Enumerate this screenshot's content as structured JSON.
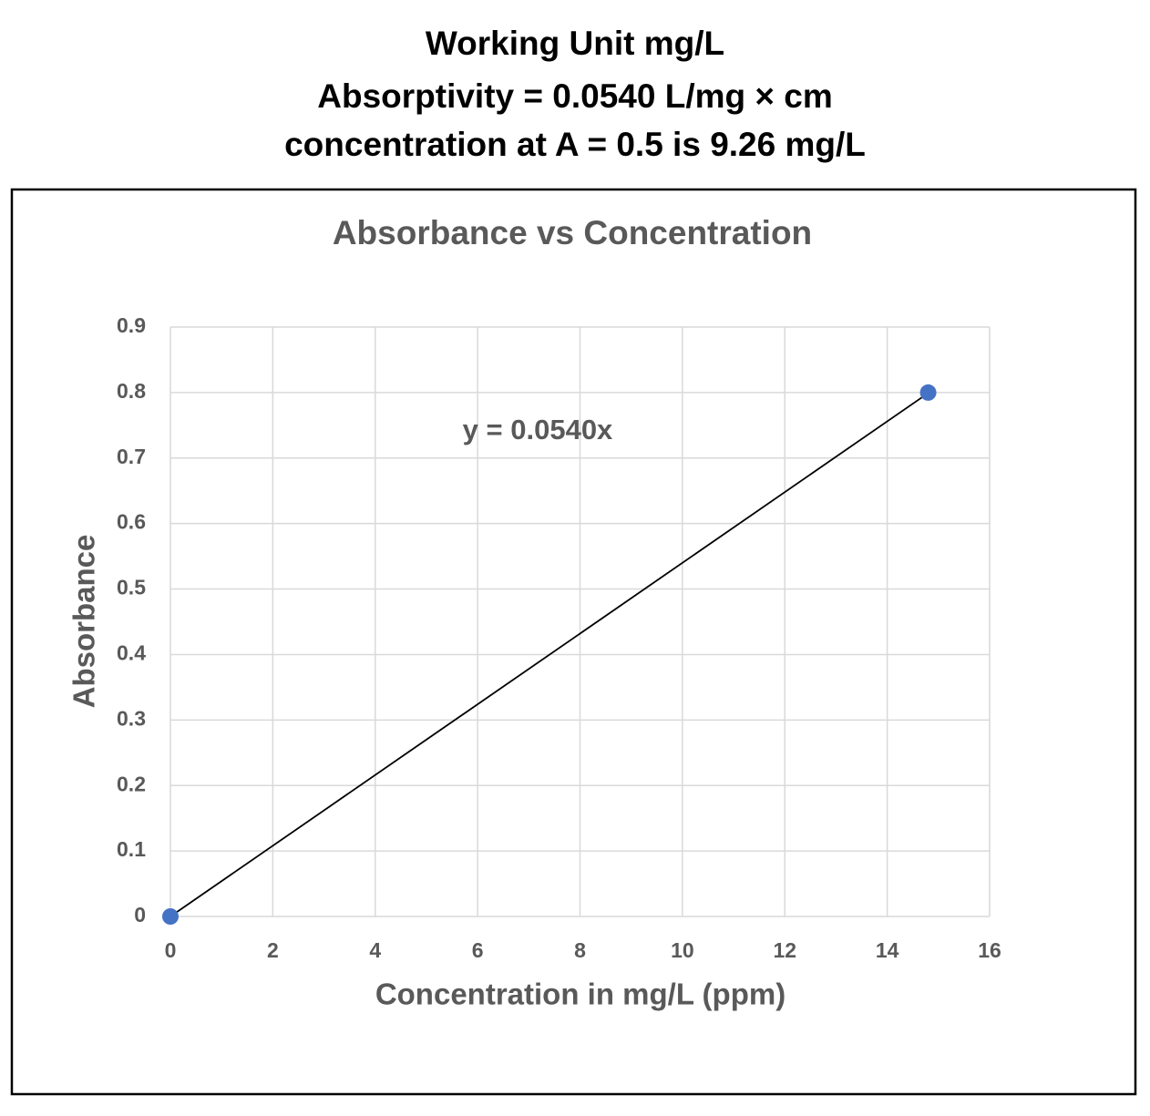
{
  "header": {
    "lines": [
      "Working Unit mg/L",
      "Absorptivity = 0.0540 L/mg × cm",
      "concentration at A = 0.5 is 9.26 mg/L"
    ]
  },
  "chart_data": {
    "type": "scatter",
    "title": "Absorbance vs Concentration",
    "x_label": "Concentration in mg/L (ppm)",
    "y_label": "Absorbance",
    "series": [
      {
        "name": "Absorbance",
        "color": "#4472c4",
        "x": [
          0,
          14.8
        ],
        "values": [
          0,
          0.8
        ]
      }
    ],
    "trendline": {
      "slope": 0.054,
      "label": "y = 0.0540x",
      "color": "#000000"
    },
    "xlim": [
      0,
      16
    ],
    "xticks": [
      0,
      2,
      4,
      6,
      8,
      10,
      12,
      14,
      16
    ],
    "ylim": [
      0,
      0.9
    ],
    "yticks": [
      0,
      0.1,
      0.2,
      0.3,
      0.4,
      0.5,
      0.6,
      0.7,
      0.8,
      0.9
    ],
    "grid": true
  }
}
